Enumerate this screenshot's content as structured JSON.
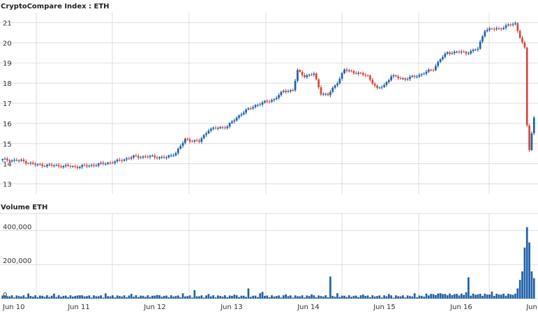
{
  "chart_data": {
    "type": "candlestick",
    "title": "CryptoCompare Index : ETH",
    "x_ticks": [
      "Jun 10",
      "Jun 11",
      "Jun 12",
      "Jun 13",
      "Jun 14",
      "Jun 15",
      "Jun 16",
      "Jun"
    ],
    "y_ticks": [
      13,
      14,
      15,
      16,
      17,
      18,
      19,
      20,
      21
    ],
    "ylim": [
      12.5,
      21.5
    ],
    "grid": true,
    "colors": {
      "up": "#1f5fa8",
      "down": "#d9463b",
      "volume": "#1f5fa8",
      "grid": "#dddddd"
    },
    "anchors": [
      [
        0,
        14.2
      ],
      [
        8,
        14.15
      ],
      [
        14,
        13.95
      ],
      [
        24,
        13.9
      ],
      [
        32,
        13.85
      ],
      [
        40,
        13.95
      ],
      [
        48,
        14.1
      ],
      [
        56,
        14.35
      ],
      [
        64,
        14.35
      ],
      [
        70,
        14.3
      ],
      [
        74,
        14.55
      ],
      [
        78,
        15.2
      ],
      [
        84,
        15.1
      ],
      [
        88,
        15.7
      ],
      [
        96,
        15.85
      ],
      [
        102,
        16.5
      ],
      [
        108,
        16.9
      ],
      [
        112,
        17.05
      ],
      [
        116,
        17.2
      ],
      [
        120,
        17.6
      ],
      [
        124,
        17.65
      ],
      [
        126,
        18.6
      ],
      [
        129,
        18.35
      ],
      [
        133,
        18.45
      ],
      [
        136,
        17.5
      ],
      [
        139,
        17.4
      ],
      [
        143,
        18.05
      ],
      [
        146,
        18.65
      ],
      [
        150,
        18.55
      ],
      [
        156,
        18.35
      ],
      [
        160,
        17.7
      ],
      [
        163,
        17.9
      ],
      [
        166,
        18.35
      ],
      [
        172,
        18.2
      ],
      [
        178,
        18.4
      ],
      [
        184,
        18.7
      ],
      [
        187,
        19.2
      ],
      [
        190,
        19.5
      ],
      [
        194,
        19.55
      ],
      [
        198,
        19.5
      ],
      [
        203,
        19.7
      ],
      [
        206,
        20.65
      ],
      [
        212,
        20.7
      ],
      [
        217,
        20.9
      ],
      [
        219,
        20.95
      ],
      [
        221,
        20.3
      ],
      [
        223,
        19.7
      ],
      [
        224,
        15.9
      ],
      [
        225,
        14.7
      ],
      [
        227,
        16.3
      ]
    ],
    "candle_count": 228,
    "volume": {
      "title": "Volume ETH",
      "y_ticks": [
        0,
        200000,
        400000
      ],
      "y_tick_labels": [
        "0",
        "200,000",
        "400,000"
      ],
      "ylim": [
        0,
        500000
      ],
      "spikes": [
        [
          220,
          60000
        ],
        [
          221,
          110000
        ],
        [
          222,
          160000
        ],
        [
          223,
          300000
        ],
        [
          224,
          420000
        ],
        [
          225,
          330000
        ],
        [
          226,
          160000
        ],
        [
          227,
          120000
        ],
        [
          140,
          130000
        ],
        [
          199,
          125000
        ],
        [
          82,
          50000
        ],
        [
          105,
          60000
        ],
        [
          111,
          40000
        ]
      ]
    }
  }
}
